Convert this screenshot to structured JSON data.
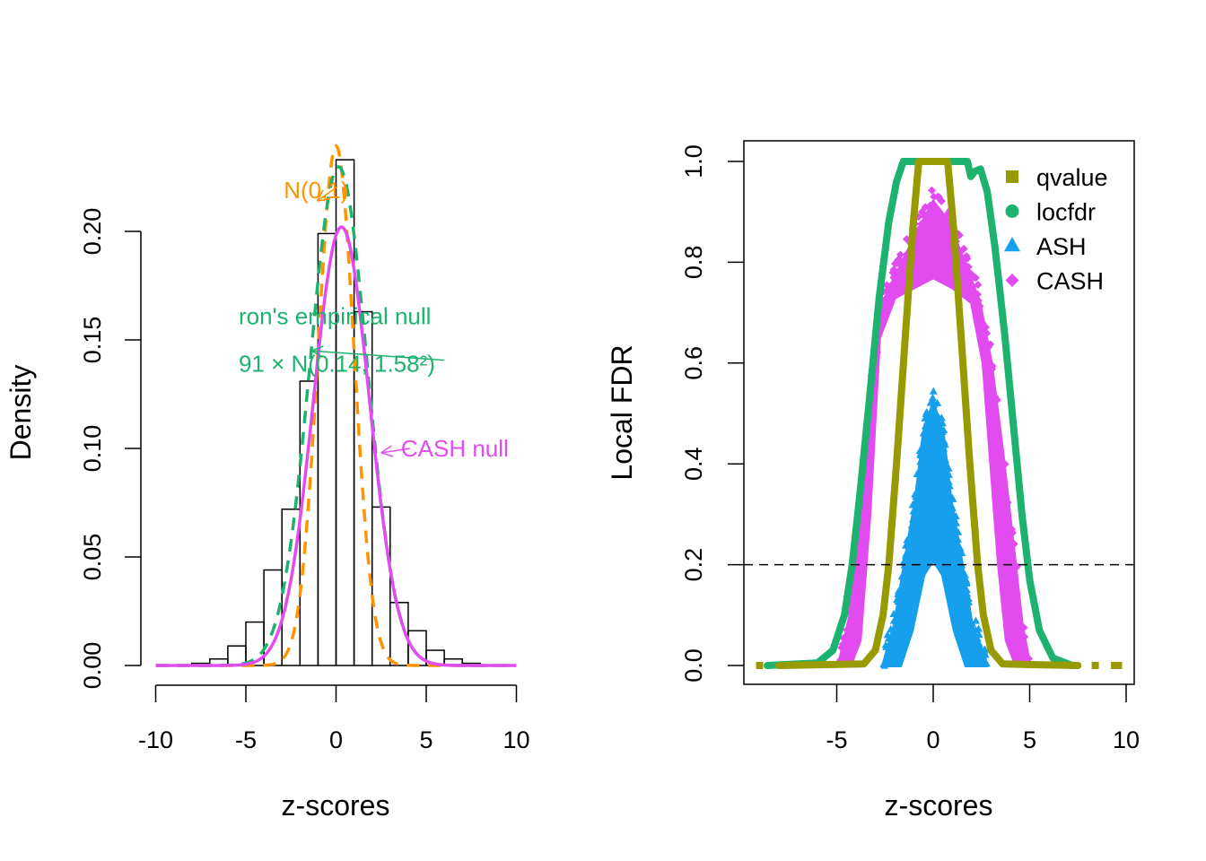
{
  "colors": {
    "n01": "#FF9300",
    "efron": "#1DB36E",
    "cash": "#E14BEF",
    "qvalue": "#979A00",
    "locfdr": "#1DB36E",
    "ash": "#169FEC",
    "axis": "#000000"
  },
  "chart_data": [
    {
      "type": "bar",
      "subtype": "histogram-with-density-curves",
      "title": "",
      "xlabel": "z-scores",
      "ylabel": "Density",
      "xlim": [
        -10,
        10
      ],
      "ylim": [
        0,
        0.2
      ],
      "xticks": [
        -10,
        -5,
        0,
        5,
        10
      ],
      "xtick_labels": [
        "-10",
        "-5",
        "0",
        "5",
        "10"
      ],
      "yticks": [
        0,
        0.05,
        0.1,
        0.15,
        0.2
      ],
      "ytick_labels": [
        "0.00",
        "0.05",
        "0.10",
        "0.15",
        "0.20"
      ],
      "grid": false,
      "histogram": {
        "bin_edges": [
          -8,
          -7,
          -6,
          -5,
          -4,
          -3,
          -2,
          -1,
          0,
          1,
          2,
          3,
          4,
          5,
          6,
          7,
          8
        ],
        "densities": [
          0.001,
          0.003,
          0.009,
          0.02,
          0.044,
          0.072,
          0.131,
          0.199,
          0.233,
          0.163,
          0.073,
          0.029,
          0.016,
          0.007,
          0.003,
          0.001
        ]
      },
      "series": [
        {
          "name": "N(0,1)",
          "style": "dashed",
          "distribution": "normal",
          "mean": 0,
          "sd": 1,
          "scale": 0.6,
          "color_key": "n01"
        },
        {
          "name": "Efron's empirical null",
          "style": "dashed",
          "distribution": "normal",
          "mean": 0.14,
          "sd": 1.58,
          "scale": 0.91,
          "color_key": "efron"
        },
        {
          "name": "CASH null",
          "style": "solid",
          "distribution": "normal",
          "mean": 0.3,
          "sd": 1.55,
          "scale": 0.785,
          "color_key": "cash"
        }
      ],
      "annotations": [
        {
          "text": "N(0,1)",
          "color_key": "n01",
          "x": -2.9,
          "y": 0.219,
          "arrow_to": [
            -1.05,
            0.214
          ]
        },
        {
          "text": "ron's empirical null",
          "color_key": "efron",
          "x": -5.4,
          "y": 0.161,
          "arrow_to": null
        },
        {
          "text": "91 × N(0.14, 1.58²)",
          "color_key": "efron",
          "x": -5.4,
          "y": 0.139,
          "arrow_to": [
            -1.35,
            0.145
          ]
        },
        {
          "text": "CASH null",
          "color_key": "cash",
          "x": 3.6,
          "y": 0.1,
          "arrow_to": [
            2.5,
            0.098
          ]
        }
      ]
    },
    {
      "type": "scatter",
      "title": "",
      "xlabel": "z-scores",
      "ylabel": "Local FDR",
      "xlim": [
        -9.4,
        10.4
      ],
      "ylim": [
        -0.04,
        1.04
      ],
      "xticks": [
        -5,
        0,
        5,
        10
      ],
      "xtick_labels": [
        "-5",
        "0",
        "5",
        "10"
      ],
      "yticks": [
        0,
        0.2,
        0.4,
        0.6,
        0.8,
        1.0
      ],
      "ytick_labels": [
        "0.0",
        "0.2",
        "0.4",
        "0.6",
        "0.8",
        "1.0"
      ],
      "grid": false,
      "reference_line": {
        "y": 0.2,
        "style": "dashed"
      },
      "legend": {
        "position": "top-right",
        "entries": [
          {
            "label": "qvalue",
            "marker": "square",
            "color_key": "qvalue"
          },
          {
            "label": "locfdr",
            "marker": "circle",
            "color_key": "locfdr"
          },
          {
            "label": "ASH",
            "marker": "triangle",
            "color_key": "ash"
          },
          {
            "label": "CASH",
            "marker": "diamond",
            "color_key": "cash"
          }
        ]
      },
      "series": [
        {
          "name": "CASH",
          "marker": "diamond",
          "color_key": "cash",
          "band_upper": [
            [
              -4.9,
              0.0
            ],
            [
              -4.3,
              0.1
            ],
            [
              -3.8,
              0.3
            ],
            [
              -3.2,
              0.55
            ],
            [
              -2.6,
              0.72
            ],
            [
              -1.6,
              0.8
            ],
            [
              -0.8,
              0.86
            ],
            [
              0.0,
              0.92
            ],
            [
              0.8,
              0.88
            ],
            [
              1.6,
              0.8
            ],
            [
              2.4,
              0.72
            ],
            [
              3.0,
              0.6
            ],
            [
              3.6,
              0.42
            ],
            [
              4.1,
              0.25
            ],
            [
              4.6,
              0.08
            ],
            [
              5.0,
              0.0
            ]
          ],
          "band_lower": [
            [
              -4.3,
              0.0
            ],
            [
              -3.8,
              0.05
            ],
            [
              -3.3,
              0.3
            ],
            [
              -2.8,
              0.65
            ],
            [
              -2.0,
              0.73
            ],
            [
              -1.0,
              0.75
            ],
            [
              0.0,
              0.77
            ],
            [
              1.0,
              0.75
            ],
            [
              2.0,
              0.72
            ],
            [
              2.6,
              0.6
            ],
            [
              3.0,
              0.4
            ],
            [
              3.4,
              0.2
            ],
            [
              3.8,
              0.05
            ],
            [
              4.3,
              0.0
            ]
          ]
        },
        {
          "name": "ASH",
          "marker": "triangle",
          "color_key": "ash",
          "band_upper": [
            [
              -2.6,
              0.0
            ],
            [
              -2.0,
              0.08
            ],
            [
              -1.4,
              0.22
            ],
            [
              -0.9,
              0.33
            ],
            [
              -0.5,
              0.46
            ],
            [
              0.0,
              0.52
            ],
            [
              0.5,
              0.46
            ],
            [
              0.9,
              0.33
            ],
            [
              1.4,
              0.22
            ],
            [
              2.0,
              0.08
            ],
            [
              2.8,
              0.0
            ]
          ],
          "band_lower": [
            [
              -1.7,
              0.0
            ],
            [
              -1.1,
              0.07
            ],
            [
              -0.5,
              0.18
            ],
            [
              0.0,
              0.21
            ],
            [
              0.5,
              0.18
            ],
            [
              1.1,
              0.07
            ],
            [
              1.7,
              0.0
            ]
          ]
        },
        {
          "name": "locfdr",
          "marker": "circle",
          "color_key": "locfdr",
          "curve": [
            [
              -8.6,
              0.0
            ],
            [
              -6.0,
              0.005
            ],
            [
              -5.2,
              0.03
            ],
            [
              -4.6,
              0.1
            ],
            [
              -4.2,
              0.2
            ],
            [
              -3.8,
              0.34
            ],
            [
              -3.3,
              0.53
            ],
            [
              -2.8,
              0.73
            ],
            [
              -2.3,
              0.88
            ],
            [
              -1.9,
              0.96
            ],
            [
              -1.55,
              1.0
            ],
            [
              1.77,
              1.0
            ],
            [
              1.95,
              0.97
            ],
            [
              2.15,
              0.98
            ],
            [
              2.45,
              0.985
            ],
            [
              2.8,
              0.94
            ],
            [
              3.2,
              0.83
            ],
            [
              3.7,
              0.66
            ],
            [
              4.2,
              0.46
            ],
            [
              4.6,
              0.3
            ],
            [
              5.0,
              0.17
            ],
            [
              5.5,
              0.07
            ],
            [
              6.2,
              0.015
            ],
            [
              7.2,
              0.0
            ]
          ]
        },
        {
          "name": "qvalue",
          "marker": "square",
          "color_key": "qvalue",
          "curve": [
            [
              -8.0,
              0.0
            ],
            [
              -3.6,
              0.003
            ],
            [
              -3.0,
              0.03
            ],
            [
              -2.6,
              0.1
            ],
            [
              -2.3,
              0.2
            ],
            [
              -1.9,
              0.4
            ],
            [
              -1.45,
              0.65
            ],
            [
              -1.05,
              0.87
            ],
            [
              -0.75,
              1.0
            ],
            [
              0.75,
              1.0
            ],
            [
              1.05,
              0.87
            ],
            [
              1.45,
              0.65
            ],
            [
              1.9,
              0.4
            ],
            [
              2.3,
              0.2
            ],
            [
              2.6,
              0.1
            ],
            [
              3.0,
              0.03
            ],
            [
              3.6,
              0.003
            ],
            [
              7.5,
              0.0
            ]
          ],
          "extra_points": [
            [
              -9.0,
              0.0
            ],
            [
              8.4,
              0.0
            ],
            [
              9.4,
              0.0
            ],
            [
              9.6,
              0.0
            ]
          ]
        }
      ]
    }
  ]
}
